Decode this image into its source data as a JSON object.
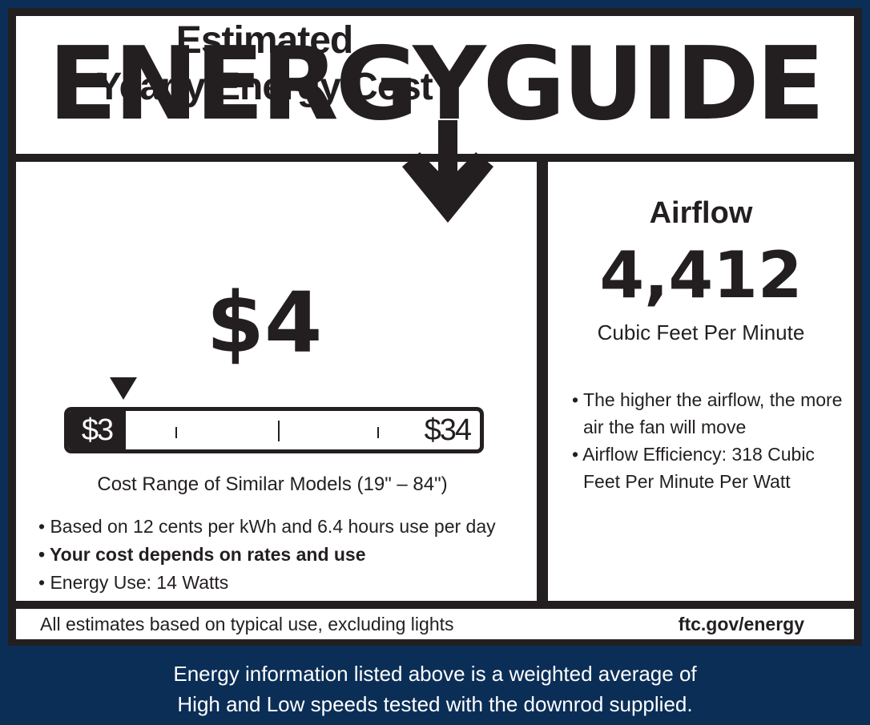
{
  "label": {
    "brand_title": "ENERGYGUIDE",
    "cost_heading_line1": "Estimated",
    "cost_heading_line2": "Yearly Energy Cost",
    "cost_value": "$4",
    "cost_scale": {
      "min_label": "$3",
      "max_label": "$34",
      "min_value": 3,
      "max_value": 34,
      "marker_value": 4
    },
    "range_caption": "Cost Range of Similar Models (19\" – 84\")",
    "notes": [
      "• Based on 12 cents per kWh and 6.4 hours use per day",
      "• Your cost depends on rates and use",
      "• Energy Use: 14 Watts"
    ],
    "airflow": {
      "title": "Airflow",
      "value": "4,412",
      "unit": "Cubic Feet Per Minute",
      "bullets": [
        "• The higher the airflow, the more air the fan will move",
        "• Airflow Efficiency: 318 Cubic Feet Per Minute Per Watt"
      ]
    },
    "footer_left": "All estimates based on typical use, excluding lights",
    "footer_right": "ftc.gov/energy"
  },
  "disclaimer": {
    "line1": "Energy information listed above is a weighted average of",
    "line2": "High and Low speeds tested with the downrod supplied."
  },
  "colors": {
    "background": "#0b2e57",
    "ink": "#231f20",
    "paper": "#ffffff"
  },
  "icons": {
    "pointer": "triangle-down-icon",
    "arrow": "arrow-down-icon"
  }
}
